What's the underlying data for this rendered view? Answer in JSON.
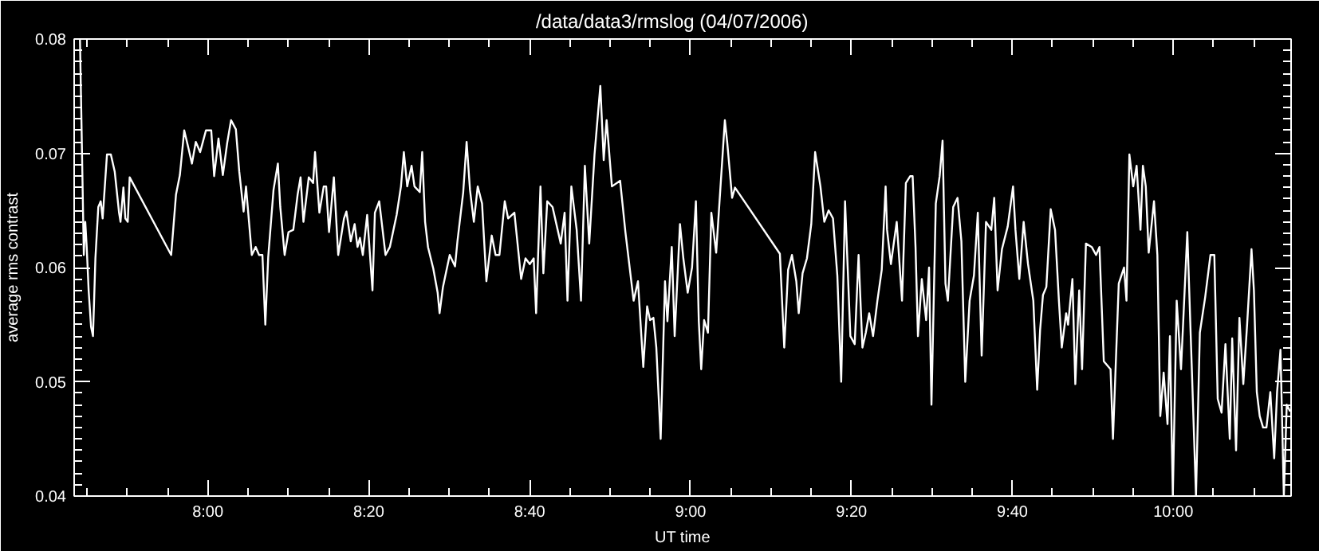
{
  "chart_data": {
    "type": "line",
    "title": "/data/data3/rmslog     (04/07/2006)",
    "xlabel": "UT time",
    "ylabel": "average rms contrast",
    "xlim": [
      7.723,
      10.244
    ],
    "ylim": [
      0.04,
      0.08
    ],
    "xticks": [
      {
        "value": 8,
        "label": "8:00"
      },
      {
        "value": 8.3333,
        "label": "8:20"
      },
      {
        "value": 8.6667,
        "label": "8:40"
      },
      {
        "value": 9,
        "label": "9:00"
      },
      {
        "value": 9.3333,
        "label": "9:20"
      },
      {
        "value": 9.6667,
        "label": "9:40"
      },
      {
        "value": 10,
        "label": "10:00"
      },
      {
        "value": 7.75,
        "label": null
      },
      {
        "value": 7.8333,
        "label": null
      },
      {
        "value": 7.9167,
        "label": null
      },
      {
        "value": 8.0833,
        "label": null
      },
      {
        "value": 8.1667,
        "label": null
      },
      {
        "value": 8.25,
        "label": null
      },
      {
        "value": 8.4167,
        "label": null
      },
      {
        "value": 8.5,
        "label": null
      },
      {
        "value": 8.5833,
        "label": null
      },
      {
        "value": 8.75,
        "label": null
      },
      {
        "value": 8.8333,
        "label": null
      },
      {
        "value": 8.9167,
        "label": null
      },
      {
        "value": 9.0833,
        "label": null
      },
      {
        "value": 9.1667,
        "label": null
      },
      {
        "value": 9.25,
        "label": null
      },
      {
        "value": 9.4167,
        "label": null
      },
      {
        "value": 9.5,
        "label": null
      },
      {
        "value": 9.5833,
        "label": null
      },
      {
        "value": 9.75,
        "label": null
      },
      {
        "value": 9.8333,
        "label": null
      },
      {
        "value": 9.9167,
        "label": null
      },
      {
        "value": 10.0833,
        "label": null
      },
      {
        "value": 10.1667,
        "label": null
      }
    ],
    "yticks": [
      0.04,
      0.05,
      0.06,
      0.07,
      0.08,
      {
        "value": 0.041,
        "label": null
      },
      {
        "value": 0.042,
        "label": null
      },
      {
        "value": 0.043,
        "label": null
      },
      {
        "value": 0.044,
        "label": null
      },
      {
        "value": 0.045,
        "label": null
      },
      {
        "value": 0.046,
        "label": null
      },
      {
        "value": 0.047,
        "label": null
      },
      {
        "value": 0.048,
        "label": null
      },
      {
        "value": 0.049,
        "label": null
      },
      {
        "value": 0.051,
        "label": null
      },
      {
        "value": 0.052,
        "label": null
      },
      {
        "value": 0.053,
        "label": null
      },
      {
        "value": 0.054,
        "label": null
      },
      {
        "value": 0.055,
        "label": null
      },
      {
        "value": 0.056,
        "label": null
      },
      {
        "value": 0.057,
        "label": null
      },
      {
        "value": 0.058,
        "label": null
      },
      {
        "value": 0.059,
        "label": null
      },
      {
        "value": 0.061,
        "label": null
      },
      {
        "value": 0.062,
        "label": null
      },
      {
        "value": 0.063,
        "label": null
      },
      {
        "value": 0.064,
        "label": null
      },
      {
        "value": 0.065,
        "label": null
      },
      {
        "value": 0.066,
        "label": null
      },
      {
        "value": 0.067,
        "label": null
      },
      {
        "value": 0.068,
        "label": null
      },
      {
        "value": 0.069,
        "label": null
      },
      {
        "value": 0.071,
        "label": null
      },
      {
        "value": 0.072,
        "label": null
      },
      {
        "value": 0.073,
        "label": null
      },
      {
        "value": 0.074,
        "label": null
      },
      {
        "value": 0.075,
        "label": null
      },
      {
        "value": 0.076,
        "label": null
      },
      {
        "value": 0.077,
        "label": null
      },
      {
        "value": 0.078,
        "label": null
      },
      {
        "value": 0.079,
        "label": null
      }
    ],
    "grid": false,
    "series": [
      {
        "color": "#ffffff",
        "x": [
          7.735,
          7.737,
          7.741,
          7.743,
          7.746,
          7.749,
          7.753,
          7.758,
          7.762,
          7.767,
          7.773,
          7.778,
          7.782,
          7.791,
          7.799,
          7.807,
          7.816,
          7.819,
          7.825,
          7.829,
          7.834,
          7.838,
          7.924,
          7.934,
          7.942,
          7.951,
          7.96,
          7.967,
          7.975,
          7.984,
          7.996,
          8.007,
          8.013,
          8.022,
          8.031,
          8.04,
          8.048,
          8.058,
          8.065,
          8.074,
          8.079,
          8.085,
          8.091,
          8.099,
          8.106,
          8.113,
          8.119,
          8.125,
          8.136,
          8.145,
          8.15,
          8.159,
          8.167,
          8.177,
          8.186,
          8.192,
          8.198,
          8.209,
          8.218,
          8.222,
          8.231,
          8.24,
          8.245,
          8.251,
          8.261,
          8.27,
          8.282,
          8.287,
          8.296,
          8.304,
          8.31,
          8.315,
          8.321,
          8.33,
          8.338,
          8.341,
          8.346,
          8.355,
          8.368,
          8.377,
          8.391,
          8.4,
          8.406,
          8.413,
          8.422,
          8.428,
          8.439,
          8.444,
          8.45,
          8.456,
          8.467,
          8.476,
          8.48,
          8.487,
          8.501,
          8.512,
          8.517,
          8.529,
          8.536,
          8.543,
          8.551,
          8.559,
          8.568,
          8.577,
          8.588,
          8.596,
          8.604,
          8.615,
          8.622,
          8.635,
          8.649,
          8.658,
          8.667,
          8.675,
          8.68,
          8.689,
          8.695,
          8.703,
          8.714,
          8.731,
          8.739,
          8.745,
          8.753,
          8.764,
          8.773,
          8.781,
          8.79,
          8.801,
          8.813,
          8.82,
          8.826,
          8.837,
          8.854,
          8.865,
          8.882,
          8.891,
          8.902,
          8.91,
          8.916,
          8.923,
          8.929,
          8.938,
          8.947,
          8.952,
          8.961,
          8.967,
          8.978,
          8.985,
          8.994,
          9.003,
          9.011,
          9.017,
          9.022,
          9.028,
          9.036,
          9.043,
          9.053,
          9.062,
          9.071,
          9.076,
          9.086,
          9.092,
          9.185,
          9.194,
          9.202,
          9.21,
          9.219,
          9.224,
          9.232,
          9.241,
          9.25,
          9.258,
          9.269,
          9.277,
          9.286,
          9.295,
          9.304,
          9.312,
          9.32,
          9.331,
          9.34,
          9.348,
          9.356,
          9.363,
          9.37,
          9.378,
          9.387,
          9.396,
          9.404,
          9.407,
          9.415,
          9.427,
          9.438,
          9.446,
          9.455,
          9.46,
          9.466,
          9.471,
          9.479,
          9.488,
          9.494,
          9.499,
          9.508,
          9.516,
          9.522,
          9.528,
          9.533,
          9.544,
          9.553,
          9.561,
          9.569,
          9.578,
          9.587,
          9.595,
          9.603,
          9.612,
          9.623,
          9.629,
          9.636,
          9.645,
          9.657,
          9.668,
          9.673,
          9.681,
          9.69,
          9.699,
          9.71,
          9.718,
          9.724,
          9.73,
          9.737,
          9.746,
          9.755,
          9.763,
          9.769,
          9.778,
          9.782,
          9.791,
          9.797,
          9.805,
          9.811,
          9.819,
          9.831,
          9.84,
          9.847,
          9.856,
          9.87,
          9.875,
          9.887,
          9.898,
          9.903,
          9.909,
          9.917,
          9.924,
          9.932,
          9.937,
          9.943,
          9.949,
          9.96,
          9.967,
          9.973,
          9.98,
          9.988,
          9.993,
          9.999,
          10.007,
          10.016,
          10.029,
          10.038,
          10.047,
          10.055,
          10.066,
          10.077,
          10.085,
          10.092,
          10.1,
          10.108,
          10.117,
          10.122,
          10.13,
          10.137,
          10.145,
          10.153,
          10.162,
          10.167,
          10.173,
          10.179,
          10.186,
          10.193,
          10.201,
          10.209,
          10.215,
          10.222,
          10.229,
          10.235,
          10.242
        ],
        "values": [
          0.08,
          0.0754,
          0.0658,
          0.0611,
          0.064,
          0.0618,
          0.058,
          0.0548,
          0.054,
          0.0608,
          0.0653,
          0.0658,
          0.0643,
          0.0699,
          0.0699,
          0.0684,
          0.0648,
          0.064,
          0.067,
          0.0643,
          0.064,
          0.0679,
          0.0611,
          0.0664,
          0.0681,
          0.072,
          0.0704,
          0.0691,
          0.071,
          0.0701,
          0.072,
          0.072,
          0.068,
          0.0713,
          0.0681,
          0.0709,
          0.0729,
          0.0721,
          0.0684,
          0.0649,
          0.0671,
          0.0641,
          0.0611,
          0.0618,
          0.0611,
          0.0611,
          0.055,
          0.0609,
          0.0668,
          0.0691,
          0.0653,
          0.0611,
          0.0631,
          0.0633,
          0.0664,
          0.0679,
          0.064,
          0.0679,
          0.0674,
          0.0701,
          0.0648,
          0.0671,
          0.0671,
          0.0631,
          0.0679,
          0.0611,
          0.0643,
          0.0649,
          0.0623,
          0.0638,
          0.0618,
          0.0626,
          0.0611,
          0.0646,
          0.0598,
          0.058,
          0.0648,
          0.0658,
          0.0611,
          0.0618,
          0.0646,
          0.0671,
          0.0701,
          0.0671,
          0.0689,
          0.0671,
          0.0666,
          0.0701,
          0.064,
          0.0618,
          0.0599,
          0.0578,
          0.056,
          0.0583,
          0.0611,
          0.0601,
          0.0623,
          0.0666,
          0.071,
          0.0668,
          0.064,
          0.0671,
          0.0656,
          0.0588,
          0.0628,
          0.0611,
          0.0611,
          0.0658,
          0.0643,
          0.0648,
          0.059,
          0.0608,
          0.0603,
          0.0608,
          0.056,
          0.0671,
          0.0595,
          0.0658,
          0.0653,
          0.0621,
          0.0648,
          0.0571,
          0.0671,
          0.0633,
          0.0571,
          0.0689,
          0.0621,
          0.0699,
          0.0759,
          0.0694,
          0.0729,
          0.0671,
          0.0676,
          0.0631,
          0.0571,
          0.0588,
          0.0513,
          0.0566,
          0.0554,
          0.0556,
          0.053,
          0.045,
          0.0588,
          0.0553,
          0.0618,
          0.054,
          0.0638,
          0.0608,
          0.0578,
          0.06,
          0.0658,
          0.0553,
          0.0511,
          0.0554,
          0.0543,
          0.0648,
          0.0613,
          0.0671,
          0.0729,
          0.0709,
          0.0661,
          0.067,
          0.0612,
          0.053,
          0.0598,
          0.0611,
          0.0588,
          0.056,
          0.0595,
          0.0608,
          0.0638,
          0.0701,
          0.0671,
          0.064,
          0.065,
          0.0643,
          0.0593,
          0.05,
          0.0658,
          0.054,
          0.0533,
          0.0611,
          0.053,
          0.0543,
          0.056,
          0.054,
          0.0571,
          0.0598,
          0.0671,
          0.0633,
          0.0603,
          0.064,
          0.0571,
          0.0674,
          0.068,
          0.068,
          0.0618,
          0.054,
          0.059,
          0.0554,
          0.06,
          0.048,
          0.0656,
          0.068,
          0.0711,
          0.0586,
          0.0571,
          0.0653,
          0.0661,
          0.0623,
          0.05,
          0.0571,
          0.0593,
          0.0648,
          0.0523,
          0.064,
          0.0633,
          0.0661,
          0.058,
          0.0616,
          0.0636,
          0.0671,
          0.0633,
          0.059,
          0.064,
          0.0603,
          0.0571,
          0.0493,
          0.0545,
          0.0576,
          0.0583,
          0.0651,
          0.0633,
          0.0571,
          0.053,
          0.056,
          0.055,
          0.059,
          0.0498,
          0.058,
          0.0511,
          0.0621,
          0.0618,
          0.0611,
          0.0618,
          0.0518,
          0.0511,
          0.045,
          0.0586,
          0.06,
          0.0571,
          0.0699,
          0.0671,
          0.0689,
          0.0633,
          0.0689,
          0.0671,
          0.0613,
          0.0658,
          0.0611,
          0.047,
          0.0508,
          0.0463,
          0.054,
          0.04,
          0.0571,
          0.0511,
          0.0631,
          0.0516,
          0.04,
          0.0543,
          0.0574,
          0.0611,
          0.0611,
          0.0485,
          0.0473,
          0.0533,
          0.045,
          0.0538,
          0.044,
          0.0556,
          0.0498,
          0.0551,
          0.0616,
          0.058,
          0.0491,
          0.047,
          0.046,
          0.046,
          0.0491,
          0.0433,
          0.0491,
          0.0528,
          0.04,
          0.048,
          0.0474
        ]
      }
    ]
  }
}
